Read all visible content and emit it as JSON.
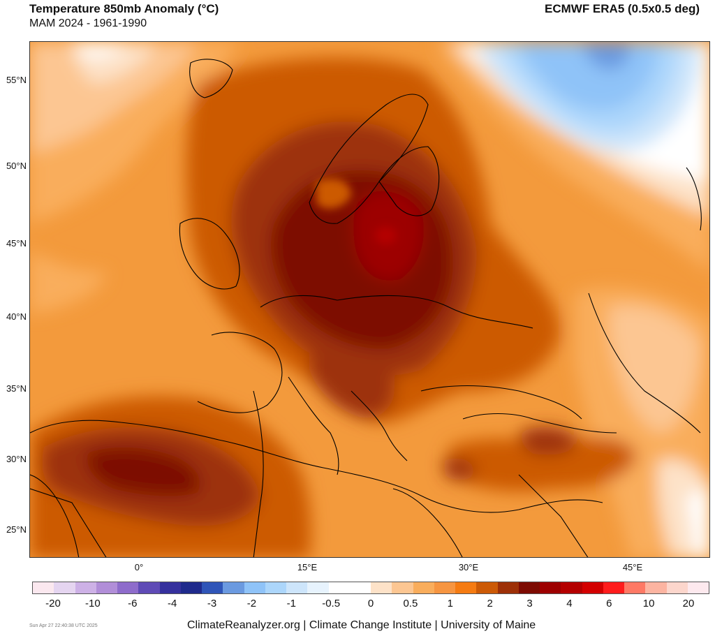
{
  "header": {
    "title": "Temperature 850mb Anomaly (°C)",
    "subtitle": "MAM 2024 - 1961-1990",
    "source": "ECMWF ERA5 (0.5x0.5 deg)"
  },
  "map": {
    "lat_labels": [
      "55°N",
      "50°N",
      "45°N",
      "40°N",
      "35°N",
      "30°N",
      "25°N"
    ],
    "lon_labels": [
      "0°",
      "15°E",
      "30°E",
      "45°E"
    ]
  },
  "legend": {
    "colors": [
      "#fbe8ef",
      "#e5d5f0",
      "#cdb1e6",
      "#b18ed8",
      "#8e6ccb",
      "#5f4bb6",
      "#35309d",
      "#1f2a8c",
      "#2f55b8",
      "#6b9ae0",
      "#8fc3f8",
      "#acd6fb",
      "#cde5fb",
      "#e7f3fd",
      "#ffffff",
      "#ffffff",
      "#fde2c8",
      "#fcc692",
      "#f9ad5c",
      "#f69541",
      "#f57b12",
      "#cc5a06",
      "#9d3007",
      "#7d0b02",
      "#9d0000",
      "#b40000",
      "#d30000",
      "#ff1c1c",
      "#fe7965",
      "#fcb4a1",
      "#fcd6cc",
      "#fde9ee"
    ],
    "labels": [
      "-20",
      "-10",
      "-6",
      "-4",
      "-3",
      "-2",
      "-1",
      "-0.5",
      "0",
      "0.5",
      "1",
      "2",
      "3",
      "4",
      "6",
      "10",
      "20"
    ]
  },
  "footer": {
    "timestamp": "Sun Apr 27 22:40:38 UTC 2025",
    "credit": "ClimateReanalyzer.org | Climate Change Institute | University of Maine"
  }
}
